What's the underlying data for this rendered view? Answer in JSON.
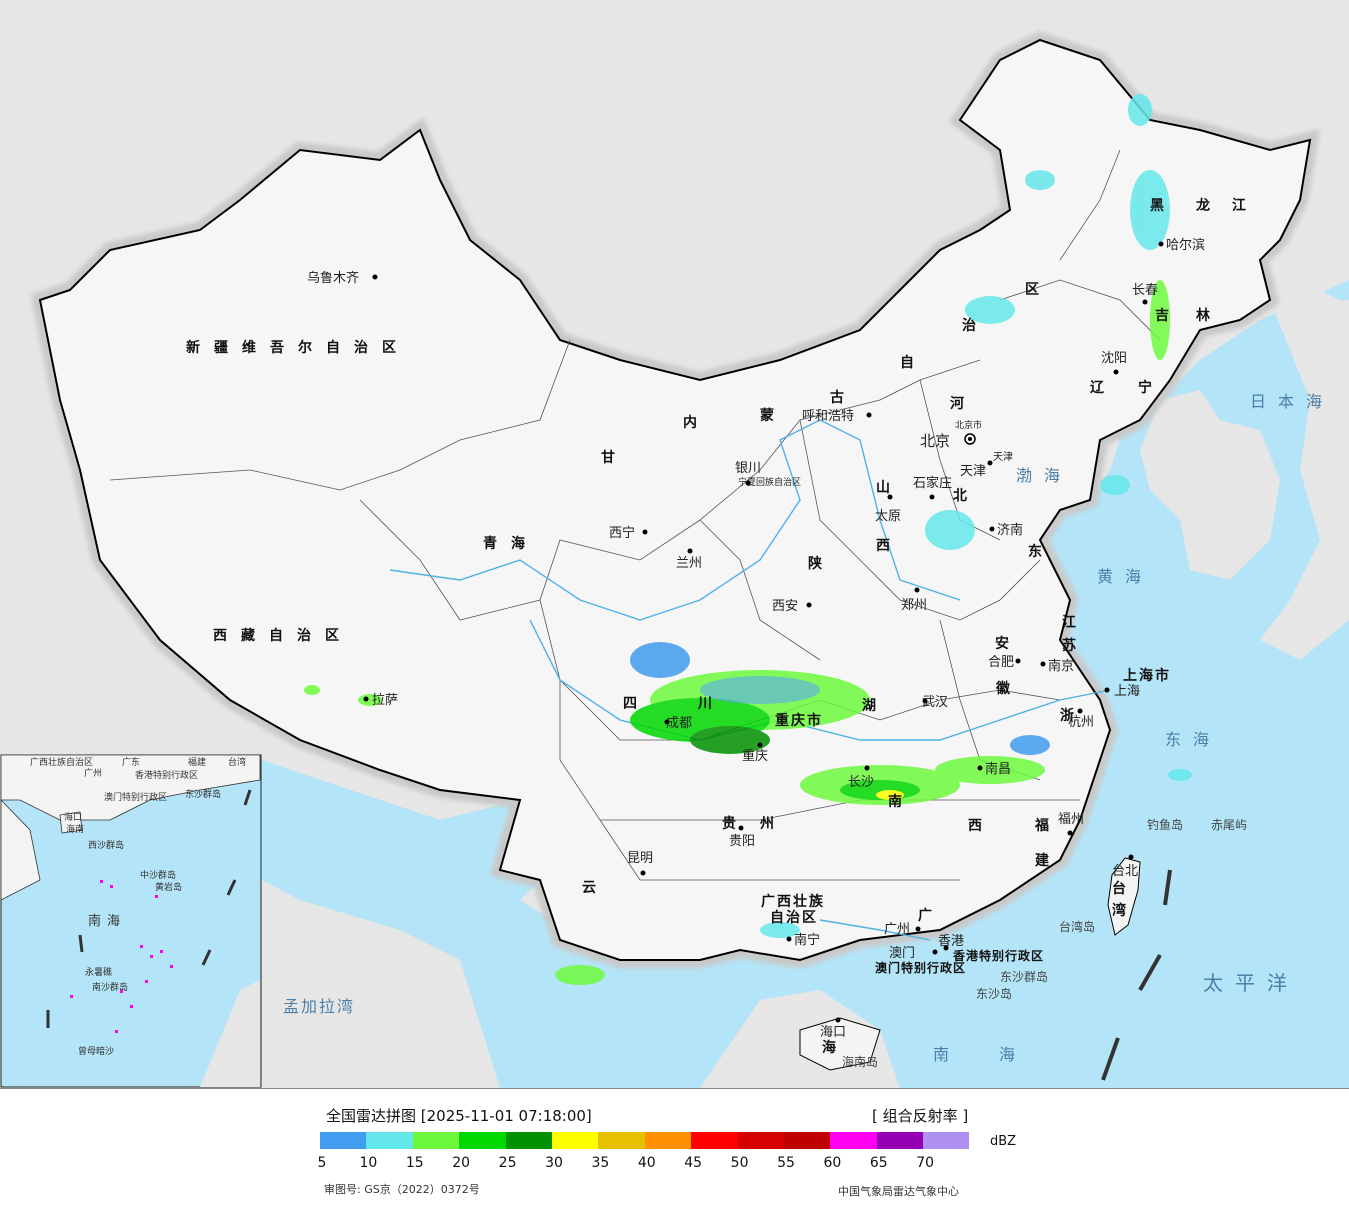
{
  "legend": {
    "title": "全国雷达拼图 [2025-11-01 07:18:00]",
    "product": "[ 组合反射率 ]",
    "unit": "dBZ",
    "bins": [
      {
        "color": "#419df0"
      },
      {
        "color": "#64e7eb"
      },
      {
        "color": "#6dfa3d"
      },
      {
        "color": "#00d800"
      },
      {
        "color": "#019000"
      },
      {
        "color": "#ffff00"
      },
      {
        "color": "#e7c000"
      },
      {
        "color": "#ff9000"
      },
      {
        "color": "#ff0000"
      },
      {
        "color": "#d60000"
      },
      {
        "color": "#c00000"
      },
      {
        "color": "#ff00f0"
      },
      {
        "color": "#9600b4"
      },
      {
        "color": "#ad90f0"
      }
    ],
    "ticks": [
      "5",
      "10",
      "15",
      "20",
      "25",
      "30",
      "35",
      "40",
      "45",
      "50",
      "55",
      "60",
      "65",
      "70"
    ],
    "approval": "审图号: GS京（2022）0372号",
    "agency": "中国气象局雷达气象中心"
  },
  "map": {
    "regions": [
      "新疆维吾尔自治区",
      "西藏自治区",
      "青海",
      "甘",
      "内",
      "蒙",
      "古",
      "自",
      "治",
      "区",
      "黑",
      "龙",
      "江",
      "吉",
      "林",
      "辽",
      "宁",
      "河",
      "北",
      "山",
      "东",
      "西",
      "陕",
      "四",
      "川",
      "湖",
      "南",
      "贵",
      "州",
      "云",
      "广西壮族",
      "自治区",
      "广",
      "江",
      "苏",
      "安",
      "徽",
      "浙",
      "福",
      "建",
      "台",
      "湾",
      "海",
      "宁夏回族自治区",
      "重庆市",
      "北京市",
      "天津",
      "上海市",
      "香港特别行政区",
      "澳门特别行政区",
      "西"
    ],
    "cities": [
      "乌鲁木齐",
      "拉萨",
      "西宁",
      "兰州",
      "银川",
      "呼和浩特",
      "北京",
      "天津",
      "石家庄",
      "太原",
      "济南",
      "郑州",
      "西安",
      "合肥",
      "南京",
      "上海",
      "杭州",
      "武汉",
      "南昌",
      "长沙",
      "福州",
      "台北",
      "贵阳",
      "昆明",
      "南宁",
      "广州",
      "香港",
      "澳门",
      "海口",
      "成都",
      "重庆",
      "沈阳",
      "长春",
      "哈尔滨"
    ],
    "seas": [
      "日本海",
      "渤海",
      "黄海",
      "东海",
      "太平洋",
      "南海",
      "孟加拉湾"
    ],
    "islands": [
      "钓鱼岛",
      "赤尾屿",
      "台湾岛",
      "东沙群岛",
      "东沙岛",
      "海南岛"
    ],
    "inset_labels": [
      "广西壮族自治区",
      "广东",
      "福建",
      "台湾",
      "广州",
      "香港特别行政区",
      "澳门特别行政区",
      "东沙群岛",
      "海口",
      "海南",
      "西沙群岛",
      "中沙群岛",
      "黄岩岛",
      "南海",
      "永暑礁",
      "南沙群岛",
      "曾母暗沙",
      "南沙群岛"
    ]
  }
}
